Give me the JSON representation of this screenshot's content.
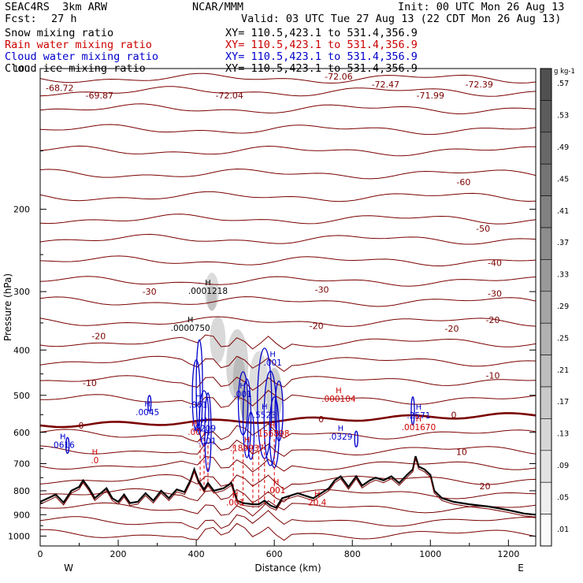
{
  "header": {
    "model": "SEAC4RS  3km ARW",
    "org": "NCAR/MMM",
    "init": "Init: 00 UTC Mon 26 Aug 13",
    "fcst_label": "Fcst:",
    "fcst_value": "27 h",
    "valid": "Valid: 03 UTC Tue 27 Aug 13 (22 CDT Mon 26 Aug 13)"
  },
  "fields": [
    {
      "label": "Snow mixing ratio",
      "xy": "XY= 110.5,423.1 to 531.4,356.9",
      "color": "#000000"
    },
    {
      "label": "Rain water mixing ratio",
      "xy": "XY= 110.5,423.1 to 531.4,356.9",
      "color": "#cc0000"
    },
    {
      "label": "Cloud water mixing ratio",
      "xy": "XY= 110.5,423.1 to 531.4,356.9",
      "color": "#0000cc"
    },
    {
      "label": "Cloud ice mixing ratio",
      "xy": "XY= 110.5,423.1 to 531.4,356.9",
      "color": "#000000"
    }
  ],
  "chart_data": {
    "type": "cross-section",
    "xlabel": "Distance (km)",
    "ylabel": "Pressure (hPa)",
    "xlim": [
      0,
      1270
    ],
    "ylim": [
      1050,
      100
    ],
    "y_log_scale": true,
    "x_ticks": [
      "0",
      "200",
      "400",
      "600",
      "800",
      "1000",
      "1200"
    ],
    "y_ticks": [
      "100",
      "200",
      "300",
      "400",
      "500",
      "600",
      "700",
      "800",
      "900",
      "1000"
    ],
    "x_end_labels": {
      "left": "W",
      "right": "E"
    },
    "colorbar": {
      "unit": "g kg-1",
      "labels": [
        ".57",
        ".53",
        ".49",
        ".45",
        ".41",
        ".37",
        ".33",
        ".29",
        ".25",
        ".21",
        ".17",
        ".13",
        ".09",
        ".05",
        ".01"
      ]
    },
    "temperature_labels": [
      {
        "text": "-68.72",
        "x": 50,
        "p": 110
      },
      {
        "text": "-69.87",
        "x": 152,
        "p": 114
      },
      {
        "text": "-72.04",
        "x": 485,
        "p": 114
      },
      {
        "text": "-72.06",
        "x": 765,
        "p": 104
      },
      {
        "text": "-72.47",
        "x": 885,
        "p": 108
      },
      {
        "text": "-71.99",
        "x": 1000,
        "p": 114
      },
      {
        "text": "-72.39",
        "x": 1125,
        "p": 108
      },
      {
        "text": "-60",
        "x": 1085,
        "p": 175
      },
      {
        "text": "-50",
        "x": 1135,
        "p": 220
      },
      {
        "text": "-40",
        "x": 1165,
        "p": 260
      },
      {
        "text": "-30",
        "x": 1165,
        "p": 303
      },
      {
        "text": "-30",
        "x": 280,
        "p": 300
      },
      {
        "text": "-30",
        "x": 722,
        "p": 297
      },
      {
        "text": "-20",
        "x": 1160,
        "p": 345
      },
      {
        "text": "-20",
        "x": 150,
        "p": 373
      },
      {
        "text": "-20",
        "x": 708,
        "p": 355
      },
      {
        "text": "-20",
        "x": 1055,
        "p": 360
      },
      {
        "text": "-10",
        "x": 1160,
        "p": 453
      },
      {
        "text": "-10",
        "x": 127,
        "p": 470
      },
      {
        "text": "0",
        "x": 1060,
        "p": 550
      },
      {
        "text": "0",
        "x": 105,
        "p": 580
      },
      {
        "text": "0",
        "x": 720,
        "p": 562
      },
      {
        "text": "10",
        "x": 1080,
        "p": 660
      },
      {
        "text": "20",
        "x": 1140,
        "p": 782
      }
    ],
    "max_labels": [
      {
        "text": ".0001218",
        "x": 430,
        "p": 300,
        "color": "#000000"
      },
      {
        "text": ".0000750",
        "x": 385,
        "p": 360,
        "color": "#000000"
      },
      {
        "text": ".0045",
        "x": 275,
        "p": 545,
        "color": "#0000cc"
      },
      {
        "text": ".0616",
        "x": 58,
        "p": 640,
        "color": "#0000cc"
      },
      {
        "text": ".001",
        "x": 405,
        "p": 525,
        "color": "#0000cc"
      },
      {
        "text": ".6209",
        "x": 420,
        "p": 590,
        "color": "#0000cc"
      },
      {
        "text": ".001",
        "x": 428,
        "p": 628,
        "color": "#0000cc"
      },
      {
        "text": ".001",
        "x": 596,
        "p": 427,
        "color": "#0000cc"
      },
      {
        "text": ".001",
        "x": 519,
        "p": 498,
        "color": "#0000cc"
      },
      {
        "text": ".5523",
        "x": 575,
        "p": 552,
        "color": "#0000cc"
      },
      {
        "text": ".0329",
        "x": 770,
        "p": 615,
        "color": "#0000cc"
      },
      {
        "text": ".2571",
        "x": 970,
        "p": 554,
        "color": "#0000cc"
      },
      {
        "text": ".000104",
        "x": 765,
        "p": 510,
        "color": "#cc0000"
      },
      {
        "text": ".00",
        "x": 395,
        "p": 600,
        "color": "#cc0000"
      },
      {
        "text": ".189937",
        "x": 530,
        "p": 650,
        "color": "#cc0000"
      },
      {
        "text": ".156898",
        "x": 595,
        "p": 605,
        "color": "#cc0000"
      },
      {
        "text": ".001670",
        "x": 970,
        "p": 587,
        "color": "#cc0000"
      },
      {
        "text": ".0",
        "x": 140,
        "p": 690,
        "color": "#cc0000"
      },
      {
        "text": ".001",
        "x": 605,
        "p": 800,
        "color": "#cc0000"
      },
      {
        "text": ".001",
        "x": 500,
        "p": 850,
        "color": "#cc0000"
      },
      {
        "text": "20.4",
        "x": 710,
        "p": 850,
        "color": "#cc0000"
      }
    ],
    "terrain_surface_p": [
      [
        0,
        845
      ],
      [
        20,
        830
      ],
      [
        40,
        815
      ],
      [
        60,
        848
      ],
      [
        80,
        800
      ],
      [
        100,
        785
      ],
      [
        110,
        760
      ],
      [
        125,
        790
      ],
      [
        140,
        830
      ],
      [
        155,
        810
      ],
      [
        170,
        790
      ],
      [
        185,
        830
      ],
      [
        200,
        845
      ],
      [
        215,
        815
      ],
      [
        230,
        850
      ],
      [
        250,
        845
      ],
      [
        270,
        810
      ],
      [
        290,
        840
      ],
      [
        310,
        800
      ],
      [
        330,
        830
      ],
      [
        350,
        795
      ],
      [
        370,
        805
      ],
      [
        385,
        760
      ],
      [
        395,
        720
      ],
      [
        405,
        760
      ],
      [
        420,
        795
      ],
      [
        430,
        770
      ],
      [
        445,
        800
      ],
      [
        470,
        790
      ],
      [
        490,
        770
      ],
      [
        505,
        840
      ],
      [
        520,
        850
      ],
      [
        545,
        855
      ],
      [
        560,
        855
      ],
      [
        575,
        840
      ],
      [
        590,
        860
      ],
      [
        605,
        870
      ],
      [
        620,
        830
      ],
      [
        640,
        820
      ],
      [
        660,
        810
      ],
      [
        680,
        820
      ],
      [
        700,
        830
      ],
      [
        720,
        810
      ],
      [
        740,
        790
      ],
      [
        755,
        760
      ],
      [
        770,
        745
      ],
      [
        790,
        785
      ],
      [
        810,
        745
      ],
      [
        825,
        780
      ],
      [
        845,
        760
      ],
      [
        860,
        750
      ],
      [
        880,
        760
      ],
      [
        900,
        745
      ],
      [
        920,
        770
      ],
      [
        940,
        740
      ],
      [
        955,
        720
      ],
      [
        962,
        675
      ],
      [
        970,
        710
      ],
      [
        985,
        720
      ],
      [
        1000,
        740
      ],
      [
        1010,
        800
      ],
      [
        1030,
        830
      ],
      [
        1060,
        845
      ],
      [
        1100,
        855
      ],
      [
        1150,
        865
      ],
      [
        1200,
        880
      ],
      [
        1240,
        895
      ],
      [
        1270,
        900
      ]
    ]
  }
}
